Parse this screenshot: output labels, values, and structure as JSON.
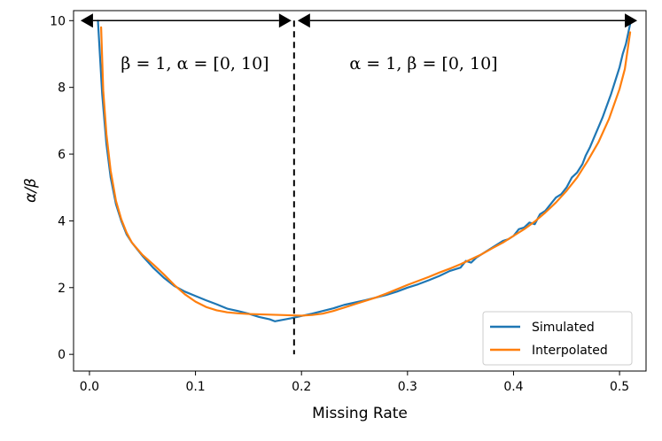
{
  "chart_data": {
    "type": "line",
    "title": "",
    "xlabel": "Missing Rate",
    "ylabel": "α/β",
    "xlim": [
      -0.015,
      0.525
    ],
    "ylim": [
      -0.5,
      10.3
    ],
    "x_ticks": [
      0.0,
      0.1,
      0.2,
      0.3,
      0.4,
      0.5
    ],
    "x_tick_labels": [
      "0.0",
      "0.1",
      "0.2",
      "0.3",
      "0.4",
      "0.5"
    ],
    "y_ticks": [
      0,
      2,
      4,
      6,
      8,
      10
    ],
    "y_tick_labels": [
      "0",
      "2",
      "4",
      "6",
      "8",
      "10"
    ],
    "grid": false,
    "legend_position": "bottom-right",
    "divider_x": 0.193,
    "annotations": [
      {
        "text": "β = 1, α = [0, 10]",
        "x_start": 0.0,
        "x_end": 0.193,
        "y": 10
      },
      {
        "text": "α = 1, β = [0, 10]",
        "x_start": 0.193,
        "x_end": 0.51,
        "y": 10
      }
    ],
    "series": [
      {
        "name": "Simulated",
        "color": "#1f77b4",
        "points": [
          [
            0.008,
            10.0
          ],
          [
            0.012,
            7.8
          ],
          [
            0.016,
            6.3
          ],
          [
            0.02,
            5.3
          ],
          [
            0.025,
            4.5
          ],
          [
            0.03,
            4.0
          ],
          [
            0.035,
            3.6
          ],
          [
            0.04,
            3.35
          ],
          [
            0.05,
            2.95
          ],
          [
            0.06,
            2.6
          ],
          [
            0.07,
            2.3
          ],
          [
            0.08,
            2.05
          ],
          [
            0.09,
            1.88
          ],
          [
            0.1,
            1.75
          ],
          [
            0.11,
            1.62
          ],
          [
            0.12,
            1.5
          ],
          [
            0.13,
            1.37
          ],
          [
            0.14,
            1.3
          ],
          [
            0.15,
            1.22
          ],
          [
            0.16,
            1.12
          ],
          [
            0.17,
            1.05
          ],
          [
            0.175,
            0.99
          ],
          [
            0.18,
            1.02
          ],
          [
            0.19,
            1.08
          ],
          [
            0.2,
            1.15
          ],
          [
            0.21,
            1.22
          ],
          [
            0.22,
            1.3
          ],
          [
            0.23,
            1.38
          ],
          [
            0.24,
            1.48
          ],
          [
            0.25,
            1.55
          ],
          [
            0.26,
            1.62
          ],
          [
            0.27,
            1.7
          ],
          [
            0.28,
            1.78
          ],
          [
            0.29,
            1.88
          ],
          [
            0.3,
            2.0
          ],
          [
            0.31,
            2.1
          ],
          [
            0.32,
            2.22
          ],
          [
            0.33,
            2.35
          ],
          [
            0.34,
            2.5
          ],
          [
            0.345,
            2.55
          ],
          [
            0.35,
            2.6
          ],
          [
            0.355,
            2.8
          ],
          [
            0.36,
            2.75
          ],
          [
            0.365,
            2.9
          ],
          [
            0.37,
            3.0
          ],
          [
            0.375,
            3.1
          ],
          [
            0.38,
            3.2
          ],
          [
            0.385,
            3.3
          ],
          [
            0.39,
            3.4
          ],
          [
            0.395,
            3.45
          ],
          [
            0.4,
            3.55
          ],
          [
            0.405,
            3.75
          ],
          [
            0.41,
            3.8
          ],
          [
            0.415,
            3.95
          ],
          [
            0.42,
            3.9
          ],
          [
            0.425,
            4.2
          ],
          [
            0.43,
            4.3
          ],
          [
            0.435,
            4.5
          ],
          [
            0.44,
            4.7
          ],
          [
            0.445,
            4.8
          ],
          [
            0.45,
            5.0
          ],
          [
            0.455,
            5.3
          ],
          [
            0.46,
            5.45
          ],
          [
            0.465,
            5.7
          ],
          [
            0.468,
            5.95
          ],
          [
            0.472,
            6.2
          ],
          [
            0.476,
            6.5
          ],
          [
            0.48,
            6.8
          ],
          [
            0.484,
            7.1
          ],
          [
            0.488,
            7.45
          ],
          [
            0.492,
            7.8
          ],
          [
            0.496,
            8.2
          ],
          [
            0.5,
            8.6
          ],
          [
            0.503,
            9.0
          ],
          [
            0.506,
            9.3
          ],
          [
            0.51,
            9.9
          ]
        ]
      },
      {
        "name": "Interpolated",
        "color": "#ff7f0e",
        "points": [
          [
            0.011,
            9.8
          ],
          [
            0.013,
            7.9
          ],
          [
            0.016,
            6.6
          ],
          [
            0.02,
            5.5
          ],
          [
            0.025,
            4.6
          ],
          [
            0.03,
            4.05
          ],
          [
            0.035,
            3.65
          ],
          [
            0.04,
            3.35
          ],
          [
            0.05,
            2.98
          ],
          [
            0.06,
            2.7
          ],
          [
            0.07,
            2.4
          ],
          [
            0.08,
            2.08
          ],
          [
            0.09,
            1.8
          ],
          [
            0.1,
            1.58
          ],
          [
            0.11,
            1.42
          ],
          [
            0.12,
            1.32
          ],
          [
            0.13,
            1.26
          ],
          [
            0.14,
            1.23
          ],
          [
            0.15,
            1.21
          ],
          [
            0.16,
            1.2
          ],
          [
            0.17,
            1.19
          ],
          [
            0.18,
            1.18
          ],
          [
            0.19,
            1.17
          ],
          [
            0.2,
            1.16
          ],
          [
            0.21,
            1.18
          ],
          [
            0.22,
            1.22
          ],
          [
            0.23,
            1.3
          ],
          [
            0.24,
            1.4
          ],
          [
            0.25,
            1.5
          ],
          [
            0.26,
            1.6
          ],
          [
            0.27,
            1.7
          ],
          [
            0.28,
            1.82
          ],
          [
            0.29,
            1.95
          ],
          [
            0.3,
            2.08
          ],
          [
            0.31,
            2.2
          ],
          [
            0.32,
            2.32
          ],
          [
            0.33,
            2.45
          ],
          [
            0.34,
            2.57
          ],
          [
            0.35,
            2.7
          ],
          [
            0.36,
            2.85
          ],
          [
            0.37,
            3.0
          ],
          [
            0.38,
            3.18
          ],
          [
            0.39,
            3.35
          ],
          [
            0.4,
            3.55
          ],
          [
            0.41,
            3.75
          ],
          [
            0.42,
            3.98
          ],
          [
            0.43,
            4.25
          ],
          [
            0.44,
            4.55
          ],
          [
            0.45,
            4.9
          ],
          [
            0.46,
            5.3
          ],
          [
            0.47,
            5.8
          ],
          [
            0.48,
            6.35
          ],
          [
            0.49,
            7.05
          ],
          [
            0.5,
            7.95
          ],
          [
            0.505,
            8.55
          ],
          [
            0.51,
            9.65
          ]
        ]
      }
    ]
  }
}
